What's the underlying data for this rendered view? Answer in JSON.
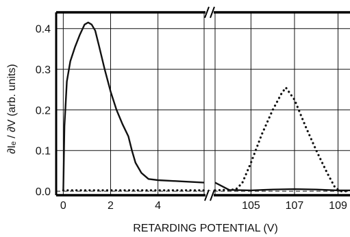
{
  "chart_data": {
    "type": "line",
    "title": "",
    "xlabel": "RETARDING POTENTIAL  (V)",
    "ylabel": "∂Iₑ / ∂V   (arb. units)",
    "ylim": [
      -0.01,
      0.44
    ],
    "y_ticks": [
      0.0,
      0.1,
      0.2,
      0.3,
      0.4
    ],
    "y_tick_labels": [
      "0.0",
      "0.1",
      "0.2",
      "0.3",
      "0.4"
    ],
    "grid": true,
    "axis_break": true,
    "x_segments": [
      {
        "range": [
          -0.3,
          5.95
        ],
        "ticks": [
          0,
          2,
          4
        ],
        "tick_labels": [
          "0",
          "2",
          "4"
        ],
        "gridlines": [
          0,
          2,
          4,
          5.95
        ]
      },
      {
        "range": [
          103.35,
          109.55
        ],
        "ticks": [
          105,
          107,
          109
        ],
        "tick_labels": [
          "105",
          "107",
          "109"
        ],
        "gridlines": [
          103.35,
          105,
          107,
          109
        ]
      }
    ],
    "series": [
      {
        "style": "solid",
        "points": [
          [
            0.0,
            0.0
          ],
          [
            0.05,
            0.16
          ],
          [
            0.15,
            0.27
          ],
          [
            0.3,
            0.32
          ],
          [
            0.5,
            0.355
          ],
          [
            0.7,
            0.385
          ],
          [
            0.9,
            0.41
          ],
          [
            1.05,
            0.415
          ],
          [
            1.2,
            0.41
          ],
          [
            1.35,
            0.395
          ],
          [
            1.5,
            0.36
          ],
          [
            1.75,
            0.3
          ],
          [
            2.0,
            0.245
          ],
          [
            2.25,
            0.2
          ],
          [
            2.5,
            0.165
          ],
          [
            2.75,
            0.135
          ],
          [
            2.9,
            0.1
          ],
          [
            3.05,
            0.07
          ],
          [
            3.3,
            0.045
          ],
          [
            3.6,
            0.03
          ],
          [
            4.0,
            0.027
          ],
          [
            5.0,
            0.024
          ],
          [
            5.95,
            0.021
          ],
          [
            103.35,
            0.021
          ],
          [
            104.0,
            0.003
          ],
          [
            105.0,
            0.002
          ],
          [
            106.0,
            0.004
          ],
          [
            107.0,
            0.005
          ],
          [
            108.0,
            0.004
          ],
          [
            109.0,
            0.002
          ],
          [
            109.55,
            0.002
          ]
        ]
      },
      {
        "style": "dotted",
        "points": [
          [
            0.0,
            0.002
          ],
          [
            5.95,
            0.002
          ],
          [
            103.35,
            0.002
          ],
          [
            104.3,
            0.004
          ],
          [
            104.6,
            0.02
          ],
          [
            105.0,
            0.07
          ],
          [
            105.5,
            0.14
          ],
          [
            106.0,
            0.2
          ],
          [
            106.4,
            0.24
          ],
          [
            106.6,
            0.255
          ],
          [
            107.0,
            0.225
          ],
          [
            107.5,
            0.16
          ],
          [
            108.0,
            0.1
          ],
          [
            108.5,
            0.045
          ],
          [
            108.85,
            0.01
          ],
          [
            109.1,
            0.0
          ],
          [
            109.55,
            0.0
          ]
        ]
      }
    ]
  }
}
